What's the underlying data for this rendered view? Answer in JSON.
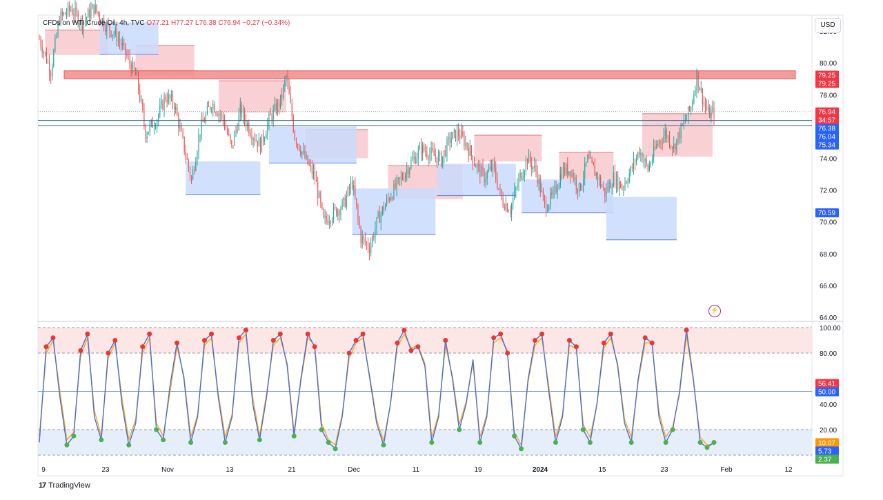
{
  "header": {
    "symbol": "CFDs on WTI Crude Oil, 4h, TVC",
    "ohlc": "O77.21 H77.27 L76.38 C76.94 −0.27 (−0.34%)"
  },
  "currency_button": "USD",
  "footer": {
    "brand": "TradingView",
    "logo": "17"
  },
  "colors": {
    "bull": "#26a69a",
    "bear": "#ef5350",
    "resistance_zone": "#f28b8b",
    "supply_fill": "#f8c9cd",
    "demand_fill": "#c9dafc",
    "stoch_k": "#4a6fd0",
    "stoch_d": "#f5a623"
  },
  "chart_data": [
    {
      "type": "candlestick",
      "symbol": "CFDs on WTI Crude Oil",
      "interval": "4h",
      "ylim": [
        64,
        83
      ],
      "y_ticks": [
        "82.00",
        "80.00",
        "78.00",
        "76.00",
        "74.00",
        "72.00",
        "70.00",
        "68.00",
        "66.00",
        "64.00"
      ],
      "x_ticks": [
        "9",
        "23",
        "Nov",
        "13",
        "21",
        "Dec",
        "11",
        "19",
        "2024",
        "15",
        "23",
        "Feb",
        "12"
      ],
      "close_path": [
        [
          0,
          81.5
        ],
        [
          8,
          79.5
        ],
        [
          14,
          82.8
        ],
        [
          22,
          83.4
        ],
        [
          30,
          82.5
        ],
        [
          38,
          83.5
        ],
        [
          46,
          82.4
        ],
        [
          54,
          81.7
        ],
        [
          60,
          80.6
        ],
        [
          68,
          79.0
        ],
        [
          74,
          75.6
        ],
        [
          82,
          76.5
        ],
        [
          88,
          77.9
        ],
        [
          94,
          77.4
        ],
        [
          100,
          75.0
        ],
        [
          106,
          72.6
        ],
        [
          112,
          75.8
        ],
        [
          120,
          77.5
        ],
        [
          128,
          76.5
        ],
        [
          134,
          74.6
        ],
        [
          140,
          77.0
        ],
        [
          148,
          75.6
        ],
        [
          154,
          74.8
        ],
        [
          160,
          76.4
        ],
        [
          168,
          77.6
        ],
        [
          172,
          79.1
        ],
        [
          178,
          75.4
        ],
        [
          186,
          73.8
        ],
        [
          192,
          72.8
        ],
        [
          198,
          70.0
        ],
        [
          204,
          70.5
        ],
        [
          212,
          71.1
        ],
        [
          218,
          72.5
        ],
        [
          224,
          69.0
        ],
        [
          230,
          68.4
        ],
        [
          236,
          70.2
        ],
        [
          244,
          71.6
        ],
        [
          250,
          72.4
        ],
        [
          258,
          73.6
        ],
        [
          266,
          74.6
        ],
        [
          274,
          74.2
        ],
        [
          280,
          73.9
        ],
        [
          286,
          75.2
        ],
        [
          292,
          75.6
        ],
        [
          298,
          74.8
        ],
        [
          304,
          73.6
        ],
        [
          310,
          72.8
        ],
        [
          316,
          73.5
        ],
        [
          322,
          71.4
        ],
        [
          328,
          70.8
        ],
        [
          334,
          72.6
        ],
        [
          340,
          74.0
        ],
        [
          346,
          73.2
        ],
        [
          352,
          71.0
        ],
        [
          358,
          71.6
        ],
        [
          364,
          73.2
        ],
        [
          370,
          73.3
        ],
        [
          376,
          72.0
        ],
        [
          382,
          73.9
        ],
        [
          388,
          73.0
        ],
        [
          394,
          71.8
        ],
        [
          400,
          72.8
        ],
        [
          406,
          72.2
        ],
        [
          412,
          73.2
        ],
        [
          418,
          74.5
        ],
        [
          424,
          73.3
        ],
        [
          430,
          74.8
        ],
        [
          436,
          75.6
        ],
        [
          442,
          74.7
        ],
        [
          448,
          76.0
        ],
        [
          454,
          77.2
        ],
        [
          458,
          79.2
        ],
        [
          462,
          77.8
        ],
        [
          466,
          76.8
        ],
        [
          470,
          76.9
        ]
      ],
      "resistance_zone": [
        79.0,
        79.5
      ],
      "horizontal_lines": [
        76.38,
        76.04
      ],
      "price_labels": [
        {
          "text": "79.25",
          "role": "zone_top",
          "value": 79.25,
          "color": "#f23645"
        },
        {
          "text": "79.25",
          "role": "zone_bottom",
          "value": 79.25,
          "color": "#f23645"
        },
        {
          "text": "76.94",
          "role": "last_price",
          "value": 76.94,
          "color": "#f23645"
        },
        {
          "text": "34:57",
          "role": "countdown",
          "value": 76.55,
          "color": "#f23645"
        },
        {
          "text": "76.38",
          "role": "line",
          "value": 76.38,
          "color": "#2962ff"
        },
        {
          "text": "76.04",
          "role": "line",
          "value": 76.04,
          "color": "#2962ff"
        },
        {
          "text": "75.34",
          "role": "line",
          "value": 75.34,
          "color": "#2962ff"
        },
        {
          "text": "70.59",
          "role": "line",
          "value": 70.59,
          "color": "#2962ff"
        }
      ],
      "supply_zones": [
        [
          0,
          0.4,
          0.25,
          0.06
        ],
        [
          1,
          0.85,
          0.2,
          0.4
        ],
        [
          2,
          0.8,
          0.3,
          0.5
        ],
        [
          3,
          0.9,
          0.25,
          0.3
        ],
        [
          4,
          0.85,
          0.4,
          0.6
        ],
        [
          5,
          0.95,
          0.3,
          0.15
        ],
        [
          6,
          1,
          0.15,
          0.2
        ],
        [
          7,
          0.97,
          0.35,
          1.2
        ]
      ],
      "demand_zones": [
        [
          0,
          0.9,
          0.1,
          0.2
        ],
        [
          1,
          0.96,
          0.3,
          0.3
        ],
        [
          2,
          0.9,
          0.45,
          0.5
        ],
        [
          3,
          0.88,
          0.4,
          1.1
        ],
        [
          4,
          0.9,
          0.35,
          0.2
        ],
        [
          5,
          0.88,
          0.5,
          0.3
        ],
        [
          6,
          0.9,
          0.25,
          0.9
        ]
      ]
    },
    {
      "type": "line",
      "indicator": "Stochastic",
      "ylim": [
        0,
        100
      ],
      "y_ticks": [
        "100.00",
        "80.00",
        "40.00",
        "20.00"
      ],
      "levels": [
        100,
        80,
        50,
        20,
        0
      ],
      "series": [
        {
          "values": [
            10,
            85,
            92,
            45,
            8,
            15,
            82,
            95,
            30,
            12,
            80,
            90,
            40,
            8,
            25,
            85,
            95,
            20,
            12,
            55,
            88,
            60,
            10,
            30,
            90,
            95,
            45,
            10,
            30,
            92,
            98,
            40,
            12,
            45,
            90,
            95,
            70,
            15,
            60,
            95,
            85,
            20,
            10,
            5,
            30,
            80,
            90,
            95,
            60,
            25,
            8,
            40,
            88,
            98,
            82,
            85,
            70,
            10,
            30,
            90,
            60,
            20,
            40,
            75,
            10,
            30,
            92,
            95,
            80,
            15,
            5,
            60,
            90,
            95,
            50,
            10,
            30,
            90,
            85,
            20,
            10,
            40,
            88,
            95,
            70,
            25,
            10,
            60,
            92,
            88,
            30,
            10,
            20,
            50,
            98,
            60,
            10,
            6,
            10
          ]
        },
        {
          "values": [
            15,
            80,
            90,
            50,
            12,
            18,
            78,
            92,
            35,
            15,
            76,
            88,
            45,
            12,
            28,
            80,
            92,
            25,
            15,
            50,
            85,
            62,
            14,
            32,
            86,
            92,
            48,
            14,
            32,
            88,
            95,
            45,
            15,
            48,
            86,
            92,
            72,
            18,
            58,
            92,
            86,
            25,
            12,
            8,
            32,
            76,
            88,
            92,
            62,
            28,
            11,
            40,
            85,
            95,
            84,
            86,
            72,
            14,
            32,
            86,
            62,
            24,
            42,
            72,
            14,
            32,
            88,
            92,
            82,
            18,
            8,
            58,
            86,
            92,
            54,
            14,
            32,
            86,
            84,
            24,
            14,
            40,
            84,
            92,
            72,
            28,
            14,
            58,
            88,
            88,
            34,
            14,
            22,
            48,
            94,
            58,
            14,
            8,
            9
          ]
        }
      ],
      "value_labels": [
        {
          "text": "56.41",
          "value": 56.41,
          "color": "#f23645"
        },
        {
          "text": "50.00",
          "value": 50.0,
          "color": "#2962ff"
        },
        {
          "text": "10.07",
          "value": 10.07,
          "color": "#ff9800"
        },
        {
          "text": "5.73",
          "value": 5.73,
          "color": "#2962ff"
        },
        {
          "text": "2.37",
          "value": 2.37,
          "color": "#4caf50"
        }
      ]
    }
  ]
}
